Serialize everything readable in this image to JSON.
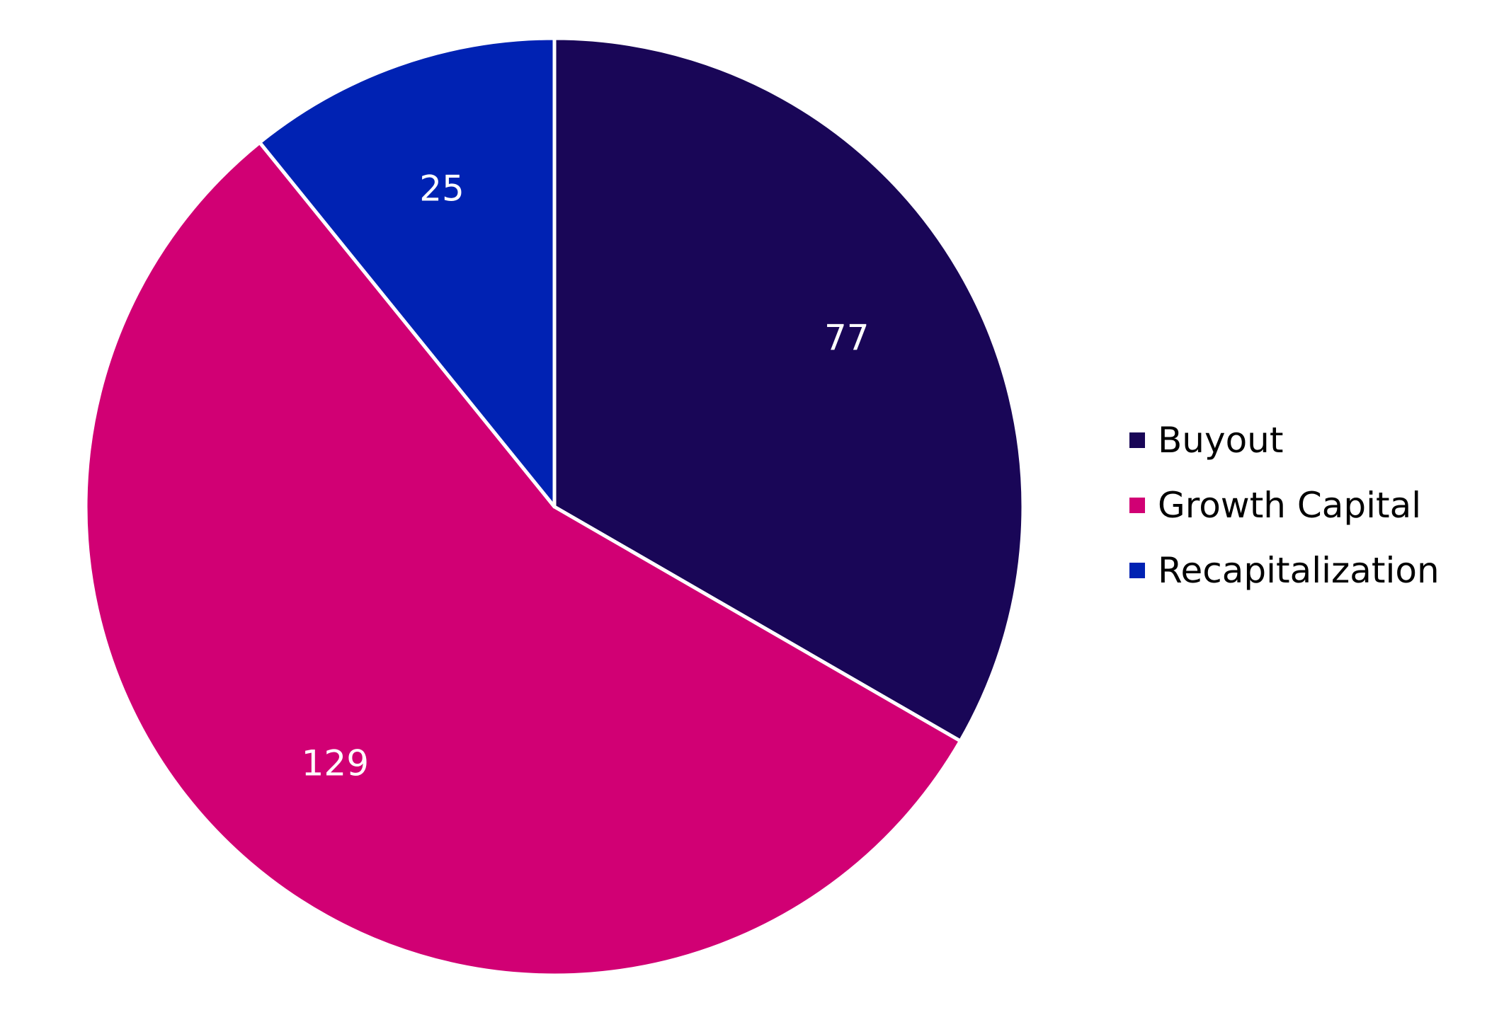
{
  "chart_data": {
    "type": "pie",
    "title": "",
    "categories": [
      "Buyout",
      "Growth Capital",
      "Recapitalization"
    ],
    "values": [
      77,
      129,
      25
    ],
    "colors": [
      "#190657",
      "#d10074",
      "#0022b3"
    ],
    "data_labels": [
      "77",
      "129",
      "25"
    ],
    "start_angle": "12 o'clock",
    "direction": "clockwise",
    "legend": {
      "position": "right",
      "entries": [
        "Buyout",
        "Growth Capital",
        "Recapitalization"
      ]
    },
    "slice_border_color": "#ffffff"
  }
}
